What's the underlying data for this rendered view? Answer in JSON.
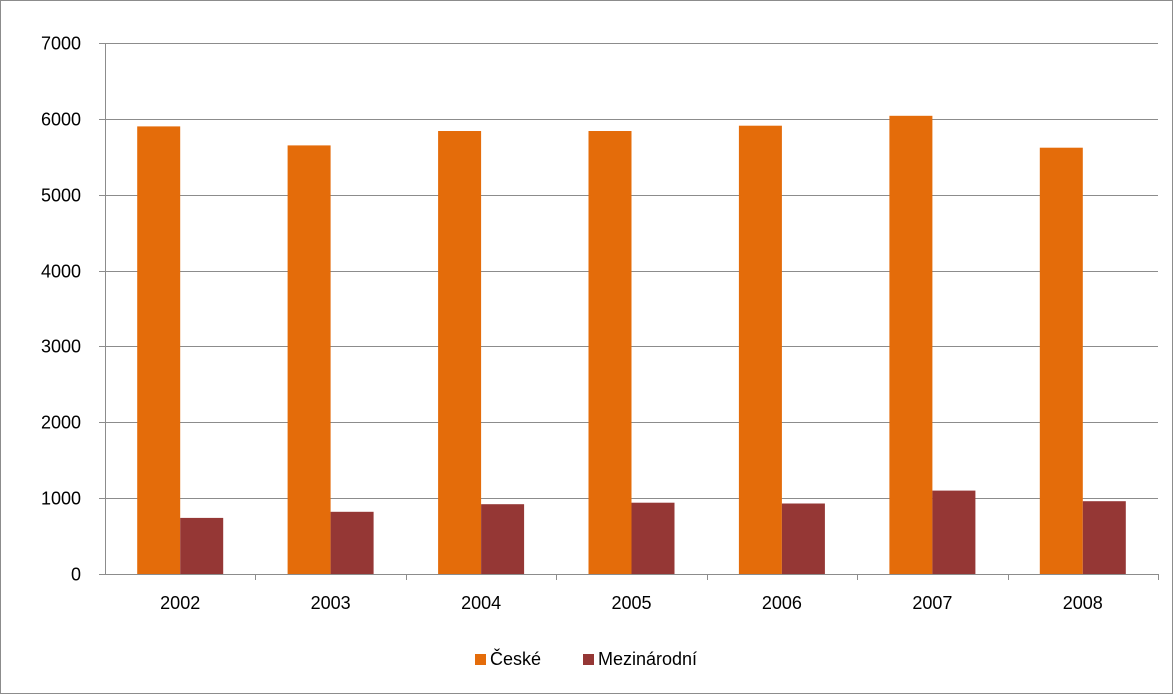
{
  "chart_data": {
    "type": "bar",
    "title": "",
    "xlabel": "",
    "ylabel": "",
    "categories": [
      "2002",
      "2003",
      "2004",
      "2005",
      "2006",
      "2007",
      "2008"
    ],
    "series": [
      {
        "name": "České",
        "color": "#e46c0a",
        "values": [
          5900,
          5650,
          5840,
          5840,
          5910,
          6040,
          5620
        ]
      },
      {
        "name": "Mezinárodní",
        "color": "#953735",
        "values": [
          740,
          820,
          920,
          940,
          930,
          1100,
          960
        ]
      }
    ],
    "ylim": [
      0,
      7000
    ],
    "yticks": [
      0,
      1000,
      2000,
      3000,
      4000,
      5000,
      6000,
      7000
    ],
    "grid": true,
    "legend_position": "bottom"
  }
}
